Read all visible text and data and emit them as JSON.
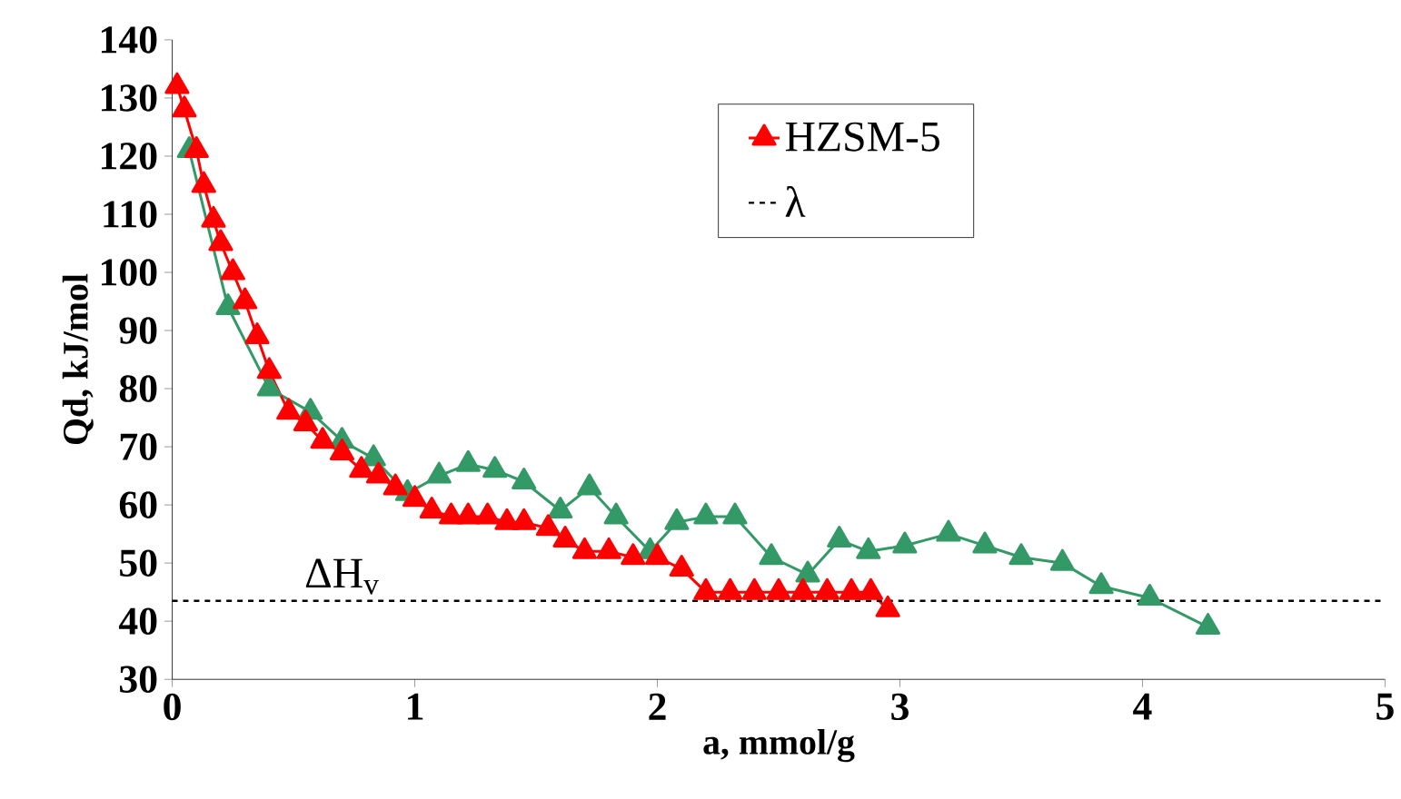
{
  "chart_data": {
    "type": "line",
    "xlabel": "a, mmol/g",
    "ylabel": "Qd, kJ/mol",
    "xlim": [
      0,
      5
    ],
    "ylim": [
      30,
      140
    ],
    "xticks": [
      0,
      1,
      2,
      3,
      4,
      5
    ],
    "yticks": [
      30,
      40,
      50,
      60,
      70,
      80,
      90,
      100,
      110,
      120,
      130,
      140
    ],
    "grid": false,
    "legend": "top right",
    "marker": "triangle",
    "line_style": "solid",
    "series": [
      {
        "name": "HZSM-5",
        "color": "#ff0000",
        "x": [
          0.02,
          0.05,
          0.1,
          0.13,
          0.17,
          0.2,
          0.25,
          0.3,
          0.35,
          0.4,
          0.48,
          0.55,
          0.62,
          0.7,
          0.78,
          0.85,
          0.92,
          1.0,
          1.07,
          1.15,
          1.22,
          1.3,
          1.38,
          1.45,
          1.55,
          1.62,
          1.7,
          1.8,
          1.9,
          2.0,
          2.1,
          2.2,
          2.3,
          2.4,
          2.5,
          2.6,
          2.7,
          2.8,
          2.88,
          2.95
        ],
        "values": [
          132,
          128,
          121,
          115,
          109,
          105,
          100,
          95,
          89,
          83,
          76,
          74,
          71,
          69,
          66,
          65,
          63,
          61,
          59,
          58,
          58,
          58,
          57,
          57,
          56,
          54,
          52,
          52,
          51,
          51,
          49,
          45,
          45,
          45,
          45,
          45,
          45,
          45,
          45,
          42
        ]
      },
      {
        "color": "#339966",
        "x": [
          0.07,
          0.23,
          0.4,
          0.57,
          0.7,
          0.83,
          0.97,
          1.1,
          1.22,
          1.33,
          1.45,
          1.6,
          1.72,
          1.83,
          1.97,
          2.08,
          2.2,
          2.32,
          2.47,
          2.62,
          2.75,
          2.87,
          3.02,
          3.2,
          3.35,
          3.5,
          3.67,
          3.83,
          4.03,
          4.27
        ],
        "values": [
          121,
          94,
          80,
          76,
          71,
          68,
          62,
          65,
          67,
          66,
          64,
          59,
          63,
          58,
          52,
          57,
          58,
          58,
          51,
          48,
          54,
          52,
          53,
          55,
          53,
          51,
          50,
          46,
          44,
          39
        ]
      }
    ],
    "ref_lines": [
      {
        "axis": "y",
        "value": 43.5,
        "label": "λ",
        "color": "#000000",
        "line_style": "dashed"
      }
    ],
    "annotations": [
      {
        "text": "ΔH$_{v}$",
        "x": 0.7,
        "y": 43.5
      }
    ]
  }
}
